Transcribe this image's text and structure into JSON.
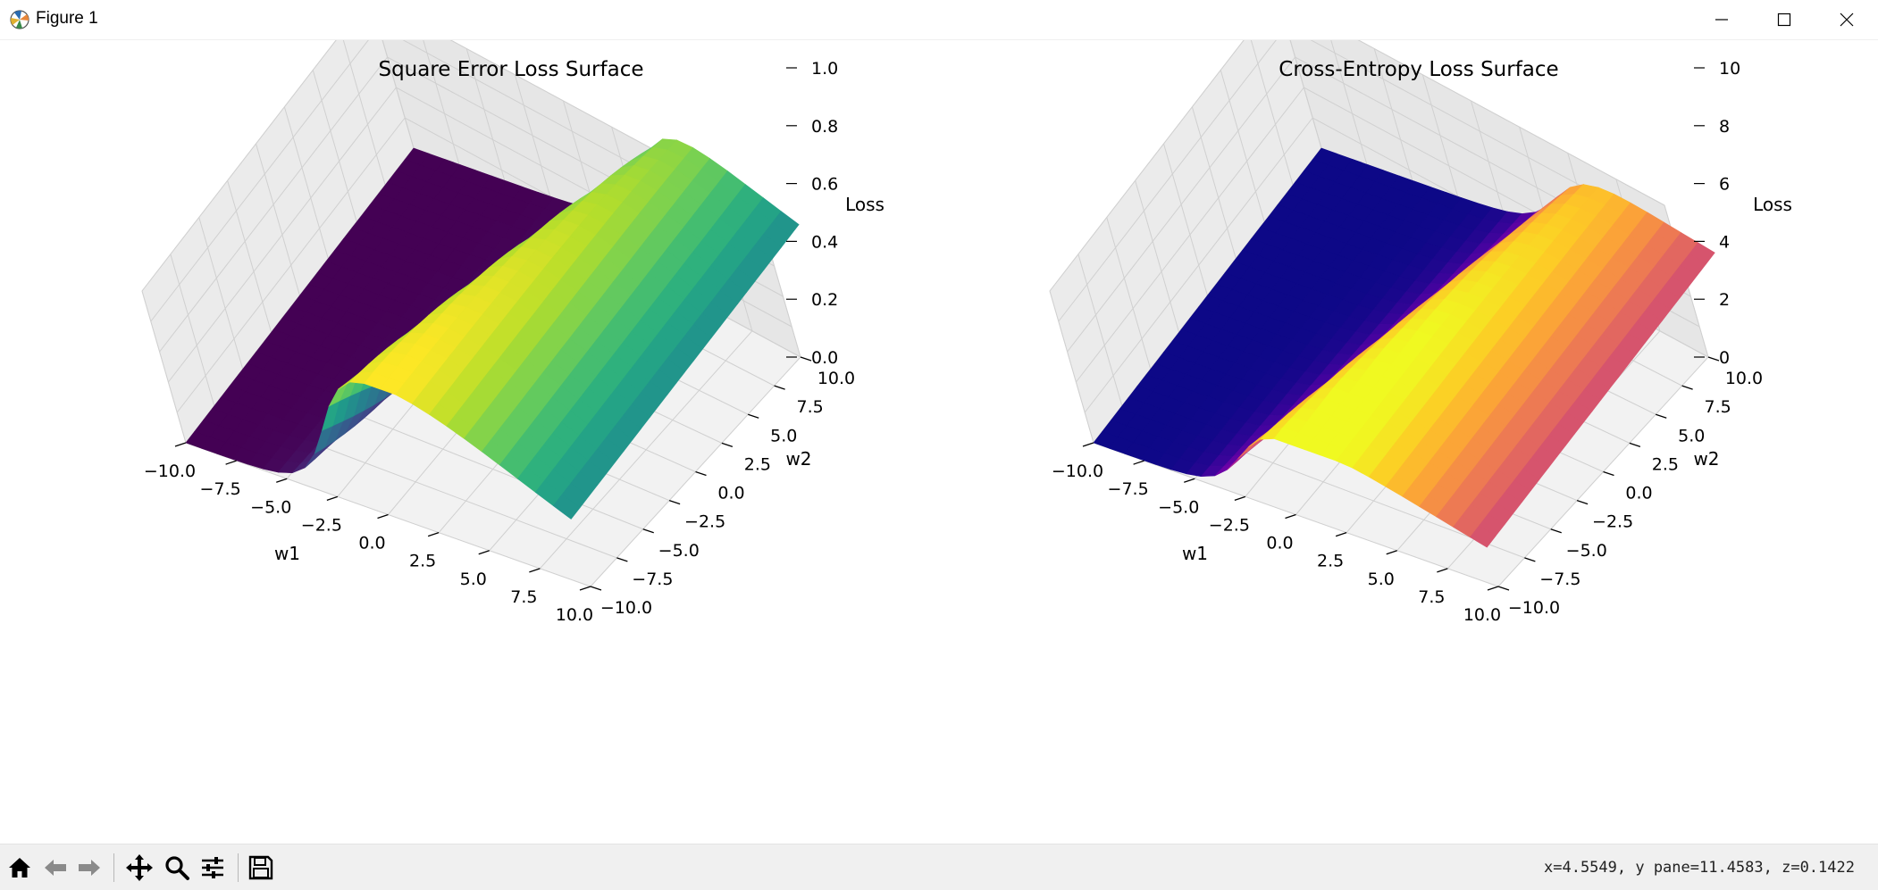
{
  "window": {
    "title": "Figure 1"
  },
  "toolbar": {
    "buttons": [
      "home",
      "back",
      "forward",
      "pan",
      "zoom",
      "configure-subplots",
      "save"
    ],
    "coords": "x=4.5549,  y pane=11.4583,  z=0.1422"
  },
  "colors": {
    "surface_left_colormap": "viridis",
    "surface_right_colormap": "plasma",
    "pane": "#f2f2f2",
    "grid": "#d0d0d0"
  },
  "chart_data": [
    {
      "type": "surface3d",
      "title": "Square Error Loss Surface",
      "xlabel": "w1",
      "ylabel": "w2",
      "zlabel": "Loss",
      "xlim": [
        -10,
        10
      ],
      "ylim": [
        -10,
        10
      ],
      "zlim": [
        0,
        1
      ],
      "x_ticks": [
        "−10.0",
        "−7.5",
        "−5.0",
        "−2.5",
        "0.0",
        "2.5",
        "5.0",
        "7.5",
        "10.0"
      ],
      "y_ticks": [
        "−10.0",
        "−7.5",
        "−5.0",
        "−2.5",
        "0.0",
        "2.5",
        "5.0",
        "7.5",
        "10.0"
      ],
      "z_ticks": [
        "0.0",
        "0.2",
        "0.4",
        "0.6",
        "0.8",
        "1.0"
      ],
      "z_tick_values": [
        0,
        0.2,
        0.4,
        0.6,
        0.8,
        1.0
      ],
      "surface": {
        "function": "squared_error",
        "low_value": 0.0,
        "plateau_value": 0.9,
        "grid": 26
      }
    },
    {
      "type": "surface3d",
      "title": "Cross-Entropy Loss Surface",
      "xlabel": "w1",
      "ylabel": "w2",
      "zlabel": "Loss",
      "xlim": [
        -10,
        10
      ],
      "ylim": [
        -10,
        10
      ],
      "zlim": [
        0,
        10
      ],
      "x_ticks": [
        "−10.0",
        "−7.5",
        "−5.0",
        "−2.5",
        "0.0",
        "2.5",
        "5.0",
        "7.5",
        "10.0"
      ],
      "y_ticks": [
        "−10.0",
        "−7.5",
        "−5.0",
        "−2.5",
        "0.0",
        "2.5",
        "5.0",
        "7.5",
        "10.0"
      ],
      "z_ticks": [
        "0",
        "2",
        "4",
        "6",
        "8",
        "10"
      ],
      "z_tick_values": [
        0,
        2,
        4,
        6,
        8,
        10
      ],
      "surface": {
        "function": "cross_entropy",
        "low_value": 0.0,
        "plateau_value": 5.0,
        "grid": 26
      }
    }
  ]
}
